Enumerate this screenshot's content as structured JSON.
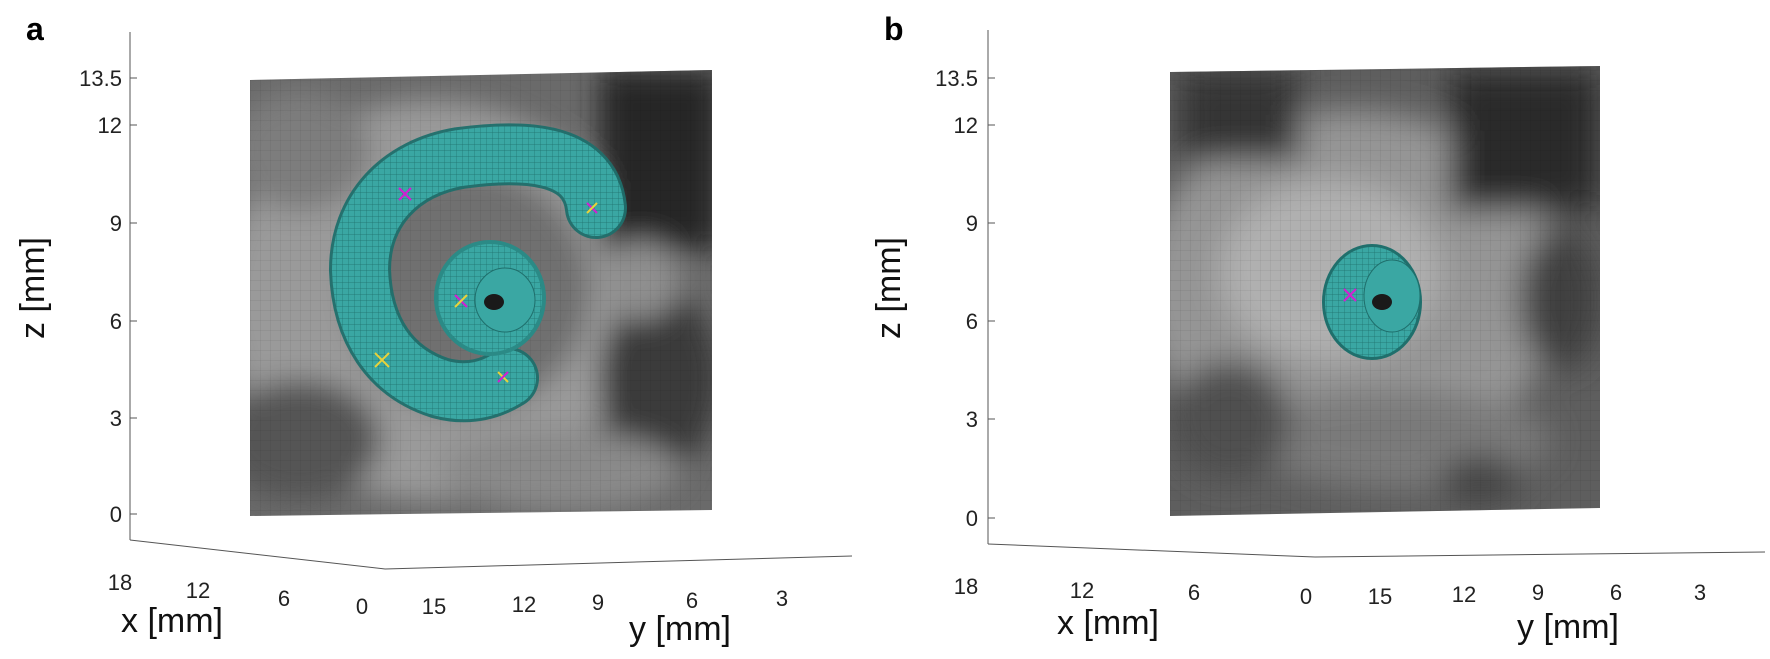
{
  "panels": [
    {
      "letter": "a",
      "z_label": "z [mm]",
      "x_label": "x [mm]",
      "y_label": "y [mm]",
      "z_ticks": [
        "13.5",
        "12",
        "9",
        "6",
        "3",
        "0"
      ],
      "x_ticks": [
        "18",
        "12",
        "6",
        "0"
      ],
      "y_ticks": [
        "15",
        "12",
        "9",
        "6",
        "3"
      ],
      "markers": 5
    },
    {
      "letter": "b",
      "z_label": "z [mm]",
      "x_label": "x [mm]",
      "y_label": "y [mm]",
      "z_ticks": [
        "13.5",
        "12",
        "9",
        "6",
        "3",
        "0"
      ],
      "x_ticks": [
        "18",
        "12",
        "6",
        "0"
      ],
      "y_ticks": [
        "15",
        "12",
        "9",
        "6",
        "3"
      ],
      "markers": 1
    }
  ],
  "colors": {
    "cochlea": "#3aa7a3",
    "marker_magenta": "#d21fd2",
    "marker_yellow": "#e8d23a",
    "axis": "#333333"
  }
}
